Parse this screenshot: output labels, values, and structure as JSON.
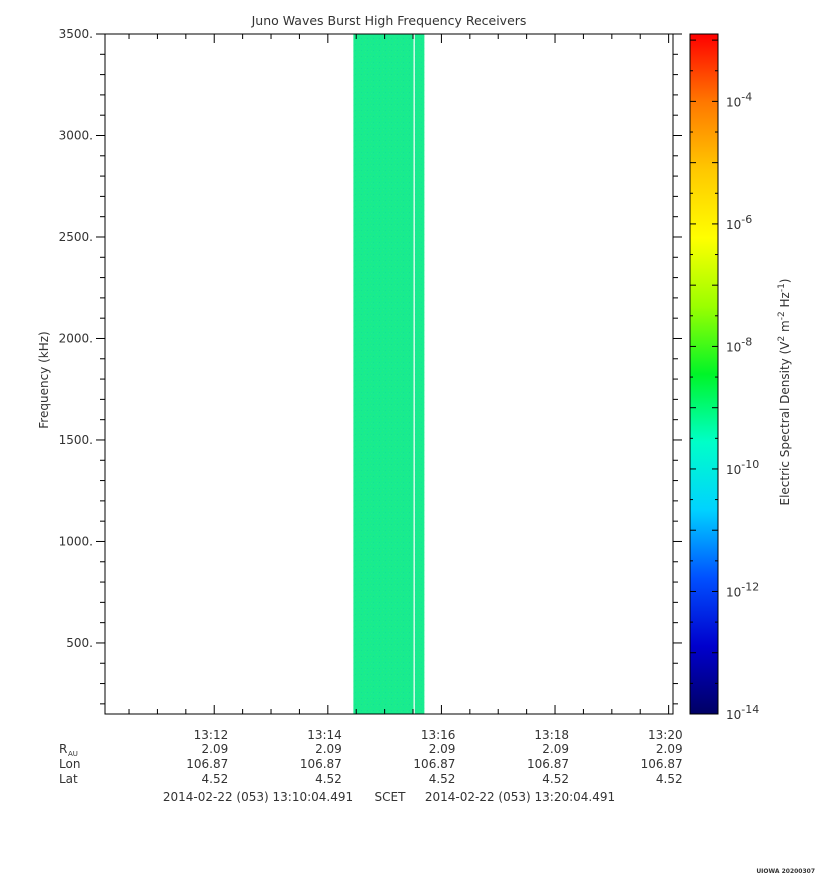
{
  "chart_data": {
    "type": "heatmap",
    "title": "Juno Waves Burst High Frequency Receivers",
    "ylabel": "Frequency (kHz)",
    "ylim": [
      150,
      3500
    ],
    "y_ticks": [
      "500.",
      "1000.",
      "1500.",
      "2000.",
      "2500.",
      "3000.",
      "3500."
    ],
    "y_tick_values": [
      500,
      1000,
      1500,
      2000,
      2500,
      3000,
      3500
    ],
    "x_range_minutes": [
      10.077,
      20.077
    ],
    "x_tick_labels": [
      "13:12",
      "13:14",
      "13:16",
      "13:18",
      "13:20"
    ],
    "x_tick_minutes": [
      12,
      14,
      16,
      18,
      20
    ],
    "ephemeris": {
      "rows": [
        {
          "label": "R",
          "sub": "AU",
          "values": [
            "2.09",
            "2.09",
            "2.09",
            "2.09",
            "2.09"
          ]
        },
        {
          "label": "Lon",
          "sub": "",
          "values": [
            "106.87",
            "106.87",
            "106.87",
            "106.87",
            "106.87"
          ]
        },
        {
          "label": "Lat",
          "sub": "",
          "values": [
            "4.52",
            "4.52",
            "4.52",
            "4.52",
            "4.52"
          ]
        }
      ]
    },
    "time_span": {
      "start": "2014-02-22 (053) 13:10:04.491",
      "mid": "SCET",
      "end": "2014-02-22 (053) 13:20:04.491"
    },
    "data_block": {
      "t_start_minutes": 14.45,
      "t_end_minutes": 15.7,
      "gap_minutes": 15.52,
      "level_log10": -10.7,
      "color": "#19ec8e"
    },
    "colorbar": {
      "label": "Electric Spectral Density (V",
      "label_full": "Electric Spectral Density (V² m⁻² Hz⁻¹)",
      "log_range": [
        -14,
        -2.9
      ],
      "tick_exponents": [
        -4,
        -6,
        -8,
        -10,
        -12,
        -14
      ],
      "tick_base": "10",
      "tick_labels": [
        "-4",
        "-6",
        "-8",
        "-10",
        "-12",
        "-14"
      ],
      "colors": [
        "#000064",
        "#0000cd",
        "#0050ff",
        "#00d2ff",
        "#00ffc8",
        "#00f528",
        "#9bff00",
        "#ffff00",
        "#ffc800",
        "#ff7800",
        "#ff0000"
      ]
    },
    "footer": "UIOWA 20200307"
  }
}
